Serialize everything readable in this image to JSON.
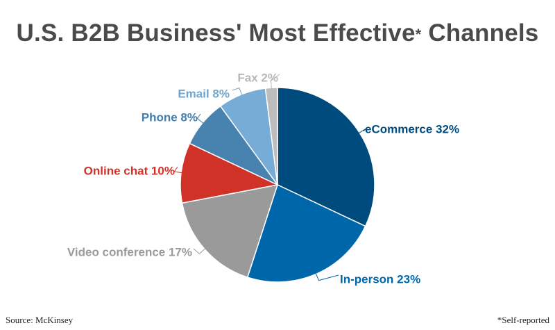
{
  "title_main": "U.S. B2B Business' Most Effective",
  "title_star": "*",
  "title_end": " Channels",
  "source": "Source: McKinsey",
  "footnote": "*Self-reported",
  "chart_data": {
    "type": "pie",
    "title": "U.S. B2B Business' Most Effective* Channels",
    "unit": "%",
    "slices": [
      {
        "label": "eCommerce",
        "value": 32,
        "color": "#004b7d",
        "label_color": "#004b7d",
        "display": "eCommerce 32%"
      },
      {
        "label": "In-person",
        "value": 23,
        "color": "#0066aa",
        "label_color": "#0066aa",
        "display": "In-person 23%"
      },
      {
        "label": "Video conference",
        "value": 17,
        "color": "#9a9a9a",
        "label_color": "#9a9a9a",
        "display": "Video conference 17%"
      },
      {
        "label": "Online chat",
        "value": 10,
        "color": "#d03228",
        "label_color": "#d03228",
        "display": "Online chat 10%"
      },
      {
        "label": "Phone",
        "value": 8,
        "color": "#4882ae",
        "label_color": "#3f7eae",
        "display": "Phone 8%"
      },
      {
        "label": "Email",
        "value": 8,
        "color": "#77acd6",
        "label_color": "#6ea6d2",
        "display": "Email 8%"
      },
      {
        "label": "Fax",
        "value": 2,
        "color": "#bdbdbd",
        "label_color": "#b8b8b8",
        "display": "Fax 2%"
      }
    ]
  }
}
